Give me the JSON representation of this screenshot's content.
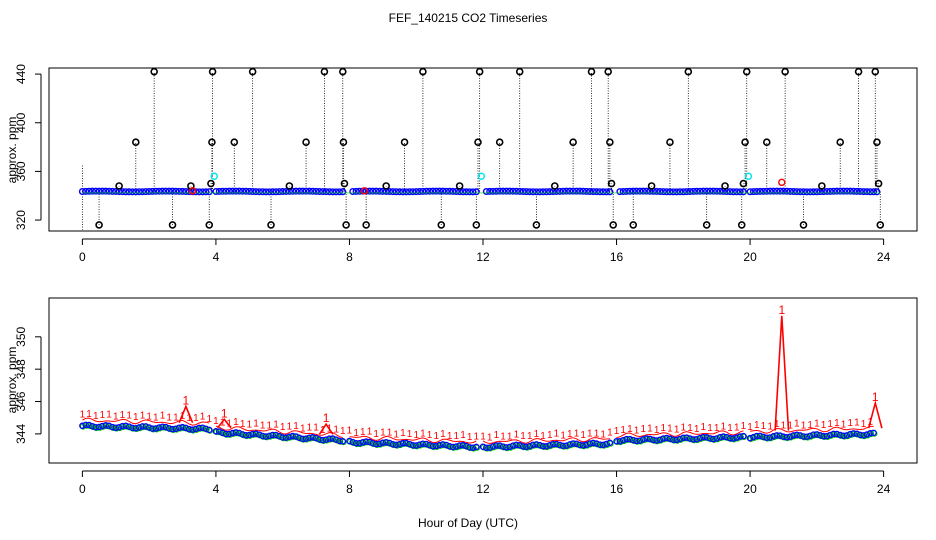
{
  "chart_data": {
    "type": "scatter",
    "title": "FEF_140215  CO2 Timeseries",
    "xlabel": "Hour of Day (UTC)",
    "colors": {
      "black": "#000000",
      "blue": "#0000ff",
      "cyan": "#00e5ee",
      "red": "#ff0000",
      "green": "#00cc00",
      "axis": "#000000"
    },
    "panels": [
      {
        "name": "top-panel",
        "ylabel": "approx. ppm",
        "xlim": [
          -1,
          25
        ],
        "ylim": [
          311,
          445
        ],
        "xticks": [
          0,
          4,
          8,
          12,
          16,
          20,
          24
        ],
        "xtick_labels": [
          "0",
          "4",
          "8",
          "12",
          "16",
          "20",
          "24"
        ],
        "yticks": [
          320,
          360,
          400,
          440
        ],
        "ytick_labels": [
          "320",
          "360",
          "400",
          "440"
        ],
        "baseline": 343.5,
        "gaps": [
          [
            3.85,
            4.0
          ],
          [
            7.85,
            8.0
          ],
          [
            11.85,
            12.0
          ],
          [
            15.85,
            16.0
          ],
          [
            19.85,
            20.0
          ]
        ],
        "black_spikes": [
          {
            "x": 0.5,
            "y": 316
          },
          {
            "x": 1.1,
            "y": 348
          },
          {
            "x": 1.6,
            "y": 384
          },
          {
            "x": 2.15,
            "y": 442
          },
          {
            "x": 2.7,
            "y": 316
          },
          {
            "x": 3.25,
            "y": 348
          },
          {
            "x": 3.8,
            "y": 316
          },
          {
            "x": 3.85,
            "y": 350
          },
          {
            "x": 3.88,
            "y": 384
          },
          {
            "x": 3.9,
            "y": 442
          },
          {
            "x": 4.55,
            "y": 384
          },
          {
            "x": 5.1,
            "y": 442
          },
          {
            "x": 5.65,
            "y": 316
          },
          {
            "x": 6.2,
            "y": 348
          },
          {
            "x": 6.7,
            "y": 384
          },
          {
            "x": 7.25,
            "y": 442
          },
          {
            "x": 7.8,
            "y": 442
          },
          {
            "x": 7.82,
            "y": 384
          },
          {
            "x": 7.85,
            "y": 350
          },
          {
            "x": 7.9,
            "y": 316
          },
          {
            "x": 8.5,
            "y": 316
          },
          {
            "x": 9.1,
            "y": 348
          },
          {
            "x": 9.65,
            "y": 384
          },
          {
            "x": 10.2,
            "y": 442
          },
          {
            "x": 10.75,
            "y": 316
          },
          {
            "x": 11.3,
            "y": 348
          },
          {
            "x": 11.8,
            "y": 316
          },
          {
            "x": 11.85,
            "y": 384
          },
          {
            "x": 11.9,
            "y": 442
          },
          {
            "x": 12.5,
            "y": 384
          },
          {
            "x": 13.1,
            "y": 442
          },
          {
            "x": 13.6,
            "y": 316
          },
          {
            "x": 14.15,
            "y": 348
          },
          {
            "x": 14.7,
            "y": 384
          },
          {
            "x": 15.25,
            "y": 442
          },
          {
            "x": 15.75,
            "y": 442
          },
          {
            "x": 15.8,
            "y": 384
          },
          {
            "x": 15.85,
            "y": 350
          },
          {
            "x": 15.9,
            "y": 316
          },
          {
            "x": 16.5,
            "y": 316
          },
          {
            "x": 17.05,
            "y": 348
          },
          {
            "x": 17.6,
            "y": 384
          },
          {
            "x": 18.15,
            "y": 442
          },
          {
            "x": 18.7,
            "y": 316
          },
          {
            "x": 19.25,
            "y": 348
          },
          {
            "x": 19.75,
            "y": 316
          },
          {
            "x": 19.8,
            "y": 350
          },
          {
            "x": 19.85,
            "y": 384
          },
          {
            "x": 19.9,
            "y": 442
          },
          {
            "x": 20.5,
            "y": 384
          },
          {
            "x": 21.05,
            "y": 442
          },
          {
            "x": 21.6,
            "y": 316
          },
          {
            "x": 22.15,
            "y": 348
          },
          {
            "x": 22.7,
            "y": 384
          },
          {
            "x": 23.25,
            "y": 442
          },
          {
            "x": 23.75,
            "y": 442
          },
          {
            "x": 23.8,
            "y": 384
          },
          {
            "x": 23.85,
            "y": 350
          },
          {
            "x": 23.9,
            "y": 316
          }
        ],
        "cyan_points": [
          {
            "x": 3.95,
            "y": 356
          },
          {
            "x": 11.95,
            "y": 356
          },
          {
            "x": 19.95,
            "y": 356
          }
        ],
        "red_points": [
          {
            "x": 3.3,
            "y": 344
          },
          {
            "x": 8.45,
            "y": 344
          },
          {
            "x": 20.95,
            "y": 351
          }
        ]
      },
      {
        "name": "bottom-panel",
        "ylabel": "approx. ppm",
        "xlim": [
          -1,
          25
        ],
        "ylim": [
          342.2,
          352.4
        ],
        "xticks": [
          0,
          4,
          8,
          12,
          16,
          20,
          24
        ],
        "xtick_labels": [
          "0",
          "4",
          "8",
          "12",
          "16",
          "20",
          "24"
        ],
        "yticks": [
          344,
          346,
          348,
          350
        ],
        "ytick_labels": [
          "344",
          "346",
          "348",
          "350"
        ],
        "segments": [
          {
            "x0": 0.0,
            "x1": 3.85,
            "y0": 344.5,
            "y1": 344.3,
            "red_offset": 0.35
          },
          {
            "x0": 4.0,
            "x1": 7.85,
            "y0": 344.1,
            "y1": 343.6,
            "red_offset": 0.3
          },
          {
            "x0": 8.0,
            "x1": 11.85,
            "y0": 343.5,
            "y1": 343.2,
            "red_offset": 0.3
          },
          {
            "x0": 12.0,
            "x1": 15.85,
            "y0": 343.2,
            "y1": 343.4,
            "red_offset": 0.3
          },
          {
            "x0": 16.0,
            "x1": 19.85,
            "y0": 343.6,
            "y1": 343.8,
            "red_offset": 0.3
          },
          {
            "x0": 20.0,
            "x1": 23.75,
            "y0": 343.8,
            "y1": 344.0,
            "red_offset": 0.35
          }
        ],
        "red_peaks": [
          {
            "x": 3.1,
            "y": 345.7
          },
          {
            "x": 4.25,
            "y": 344.9
          },
          {
            "x": 7.3,
            "y": 344.6
          },
          {
            "x": 20.95,
            "y": 351.3
          },
          {
            "x": 23.75,
            "y": 345.9
          }
        ],
        "red_marker_label": "1"
      }
    ]
  }
}
